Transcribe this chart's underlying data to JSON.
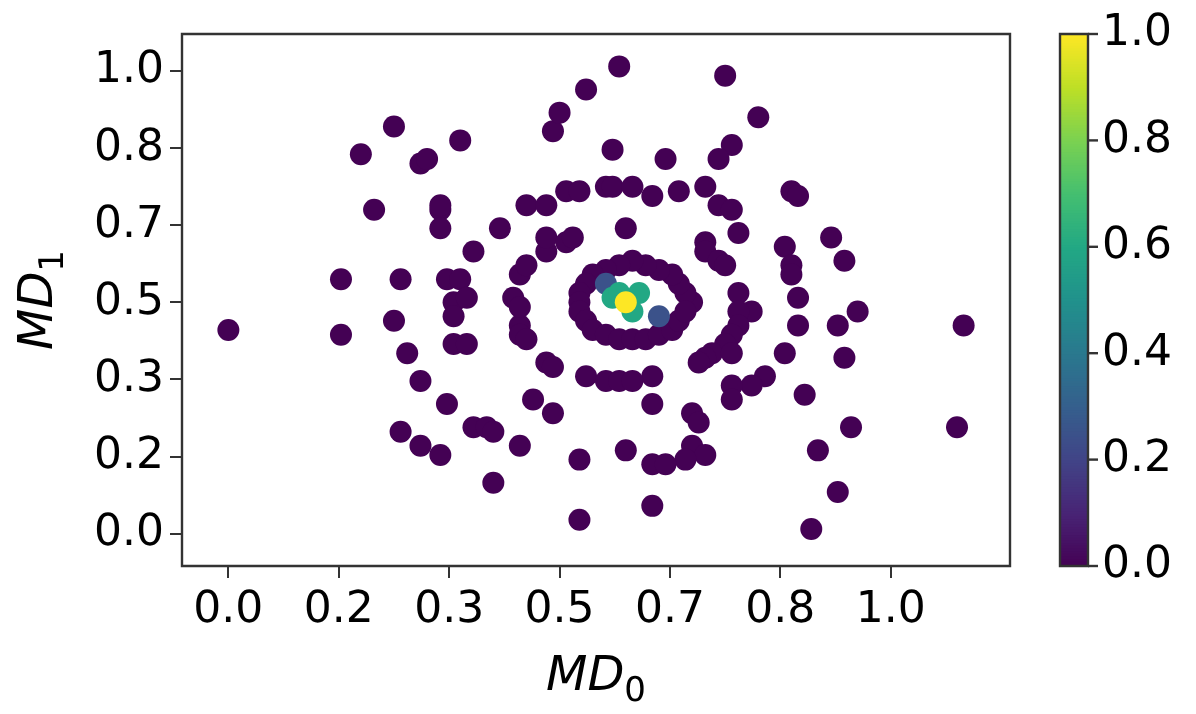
{
  "chart_data": {
    "type": "scatter",
    "xlabel": "MD$_{0}$",
    "ylabel": "MD$_{1}$",
    "marker": "circle",
    "xlim": [
      -0.07,
      1.18
    ],
    "ylim": [
      -0.07,
      1.08
    ],
    "xticks": [
      {
        "value": 0,
        "label": "0.0"
      },
      {
        "value": 0.1667,
        "label": "0.2"
      },
      {
        "value": 0.3333,
        "label": "0.3"
      },
      {
        "value": 0.5,
        "label": "0.5"
      },
      {
        "value": 0.6667,
        "label": "0.7"
      },
      {
        "value": 0.8333,
        "label": "0.8"
      },
      {
        "value": 1.0,
        "label": "1.0"
      }
    ],
    "yticks": [
      {
        "value": 0,
        "label": "0.0"
      },
      {
        "value": 0.1667,
        "label": "0.2"
      },
      {
        "value": 0.3333,
        "label": "0.3"
      },
      {
        "value": 0.5,
        "label": "0.5"
      },
      {
        "value": 0.6667,
        "label": "0.7"
      },
      {
        "value": 0.8333,
        "label": "0.8"
      },
      {
        "value": 1.0,
        "label": "1.0"
      }
    ],
    "clim": [
      0,
      1
    ],
    "cticks": [
      {
        "value": 0,
        "label": "0.0"
      },
      {
        "value": 0.2,
        "label": "0.2"
      },
      {
        "value": 0.4,
        "label": "0.4"
      },
      {
        "value": 0.6,
        "label": "0.6"
      },
      {
        "value": 0.8,
        "label": "0.8"
      },
      {
        "value": 1.0,
        "label": "1.0"
      }
    ],
    "x": [
      0.0,
      0.17,
      0.17,
      0.2,
      0.25,
      0.22,
      0.29,
      0.3,
      0.35,
      0.32,
      0.32,
      0.32,
      0.41,
      0.37,
      0.26,
      0.25,
      0.27,
      0.29,
      0.33,
      0.26,
      0.29,
      0.32,
      0.4,
      0.33,
      0.35,
      0.34,
      0.34,
      0.36,
      0.34,
      0.36,
      0.37,
      0.39,
      0.4,
      0.44,
      0.46,
      0.49,
      0.53,
      0.53,
      0.54,
      0.48,
      0.49,
      0.44,
      0.44,
      0.45,
      0.43,
      0.44,
      0.44,
      0.45,
      0.48,
      0.48,
      0.51,
      0.52,
      0.45,
      0.48,
      0.51,
      0.53,
      0.49,
      0.5,
      0.54,
      0.59,
      0.58,
      0.57,
      0.75,
      0.8,
      0.66,
      0.76,
      0.74,
      0.58,
      0.61,
      0.64,
      0.68,
      0.72,
      0.74,
      0.76,
      0.77,
      0.85,
      0.86,
      0.6,
      0.72,
      0.72,
      0.74,
      0.75,
      0.84,
      0.85,
      0.85,
      0.91,
      0.93,
      0.77,
      0.79,
      0.77,
      0.77,
      0.76,
      0.75,
      0.86,
      0.86,
      0.95,
      0.92,
      1.11,
      0.73,
      0.72,
      0.71,
      0.76,
      0.84,
      0.93,
      0.81,
      0.79,
      0.76,
      0.76,
      0.87,
      0.64,
      0.64,
      0.7,
      0.71,
      0.7,
      0.72,
      0.69,
      0.64,
      0.66,
      0.6,
      0.64,
      0.89,
      0.94,
      1.1,
      0.92,
      0.88,
      0.57,
      0.59,
      0.61,
      0.7,
      0.69,
      0.68,
      0.67,
      0.65,
      0.63,
      0.61,
      0.59,
      0.57,
      0.55,
      0.54,
      0.53,
      0.53,
      0.53,
      0.54,
      0.55,
      0.57,
      0.59,
      0.61,
      0.63,
      0.65,
      0.67,
      0.68,
      0.69,
      0.57,
      0.65,
      0.58,
      0.62,
      0.59,
      0.61,
      0.6
    ],
    "values": [
      0.44,
      0.55,
      0.43,
      0.82,
      0.88,
      0.7,
      0.8,
      0.81,
      0.85,
      0.7,
      0.71,
      0.66,
      0.66,
      0.61,
      0.55,
      0.46,
      0.39,
      0.33,
      0.28,
      0.22,
      0.19,
      0.17,
      0.11,
      0.55,
      0.55,
      0.5,
      0.47,
      0.51,
      0.41,
      0.41,
      0.23,
      0.23,
      0.22,
      0.19,
      0.29,
      0.26,
      0.16,
      0.03,
      0.34,
      0.37,
      0.36,
      0.45,
      0.43,
      0.42,
      0.51,
      0.49,
      0.56,
      0.58,
      0.61,
      0.64,
      0.63,
      0.64,
      0.71,
      0.71,
      0.74,
      0.74,
      0.87,
      0.91,
      0.96,
      1.01,
      0.83,
      0.75,
      0.99,
      0.9,
      0.81,
      0.84,
      0.81,
      0.75,
      0.75,
      0.73,
      0.74,
      0.75,
      0.71,
      0.7,
      0.65,
      0.74,
      0.73,
      0.66,
      0.63,
      0.61,
      0.59,
      0.58,
      0.62,
      0.58,
      0.56,
      0.64,
      0.59,
      0.52,
      0.48,
      0.48,
      0.45,
      0.43,
      0.41,
      0.51,
      0.45,
      0.48,
      0.45,
      0.45,
      0.39,
      0.38,
      0.37,
      0.39,
      0.39,
      0.38,
      0.34,
      0.32,
      0.32,
      0.29,
      0.3,
      0.34,
      0.28,
      0.26,
      0.24,
      0.19,
      0.17,
      0.16,
      0.15,
      0.15,
      0.18,
      0.06,
      0.18,
      0.23,
      0.23,
      0.09,
      0.01,
      0.33,
      0.33,
      0.33,
      0.5,
      0.52,
      0.54,
      0.56,
      0.57,
      0.58,
      0.59,
      0.58,
      0.57,
      0.56,
      0.54,
      0.52,
      0.5,
      0.48,
      0.46,
      0.44,
      0.43,
      0.42,
      0.42,
      0.42,
      0.43,
      0.44,
      0.46,
      0.48,
      0.54,
      0.47,
      0.51,
      0.52,
      0.52,
      0.48,
      0.5
    ],
    "cvalues": [
      0,
      0,
      0,
      0,
      0,
      0,
      0,
      0,
      0,
      0,
      0,
      0,
      0,
      0,
      0,
      0,
      0,
      0,
      0,
      0,
      0,
      0,
      0,
      0,
      0,
      0,
      0,
      0,
      0,
      0,
      0,
      0,
      0,
      0,
      0,
      0,
      0,
      0,
      0,
      0,
      0,
      0,
      0,
      0,
      0,
      0,
      0,
      0,
      0,
      0,
      0,
      0,
      0,
      0,
      0,
      0,
      0,
      0,
      0,
      0,
      0,
      0,
      0,
      0,
      0,
      0,
      0,
      0,
      0,
      0,
      0,
      0,
      0,
      0,
      0,
      0,
      0,
      0,
      0,
      0,
      0,
      0,
      0,
      0,
      0,
      0,
      0,
      0,
      0,
      0,
      0,
      0,
      0,
      0,
      0,
      0,
      0,
      0,
      0,
      0,
      0,
      0,
      0,
      0,
      0,
      0,
      0,
      0,
      0,
      0,
      0,
      0,
      0,
      0,
      0,
      0,
      0,
      0,
      0,
      0,
      0,
      0,
      0,
      0,
      0,
      0,
      0,
      0,
      0,
      0,
      0,
      0,
      0,
      0,
      0,
      0,
      0,
      0,
      0,
      0,
      0,
      0,
      0,
      0,
      0,
      0,
      0,
      0,
      0,
      0,
      0,
      0,
      0.25,
      0.25,
      0.6,
      0.6,
      0.6,
      0.6,
      1.0
    ]
  }
}
